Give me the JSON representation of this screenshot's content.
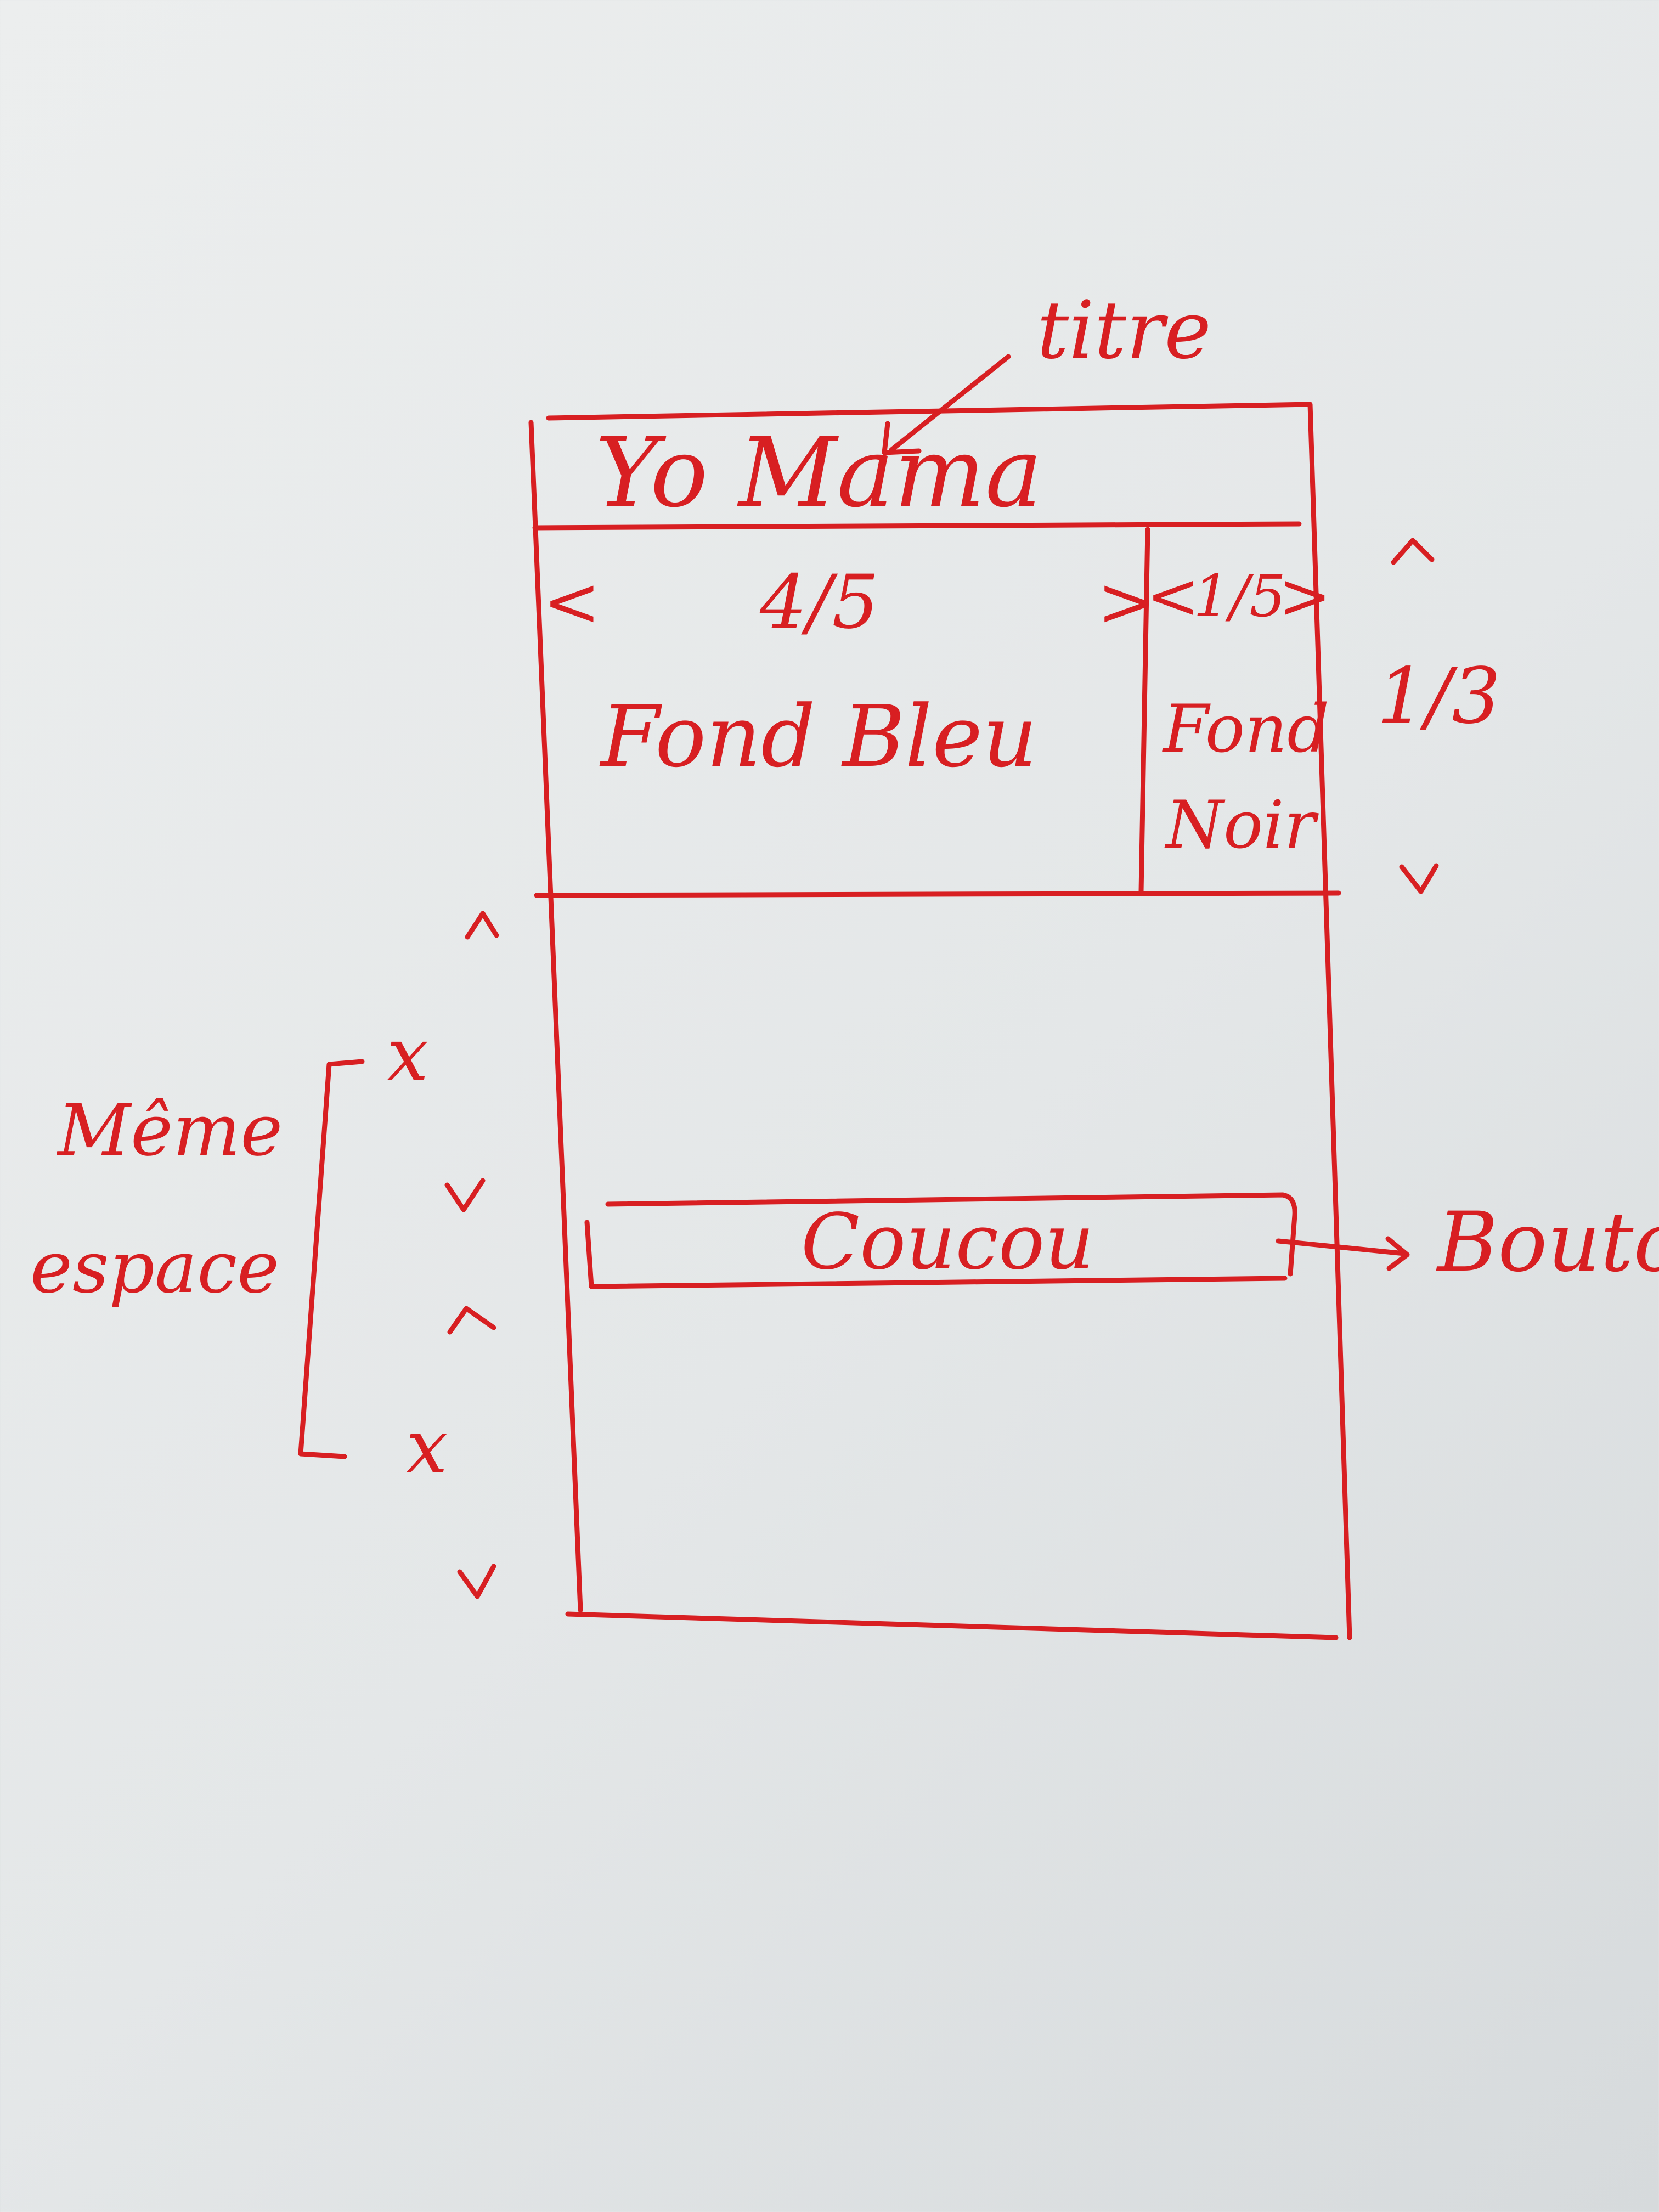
{
  "ink_color": "#d81f22",
  "paper_color": "#e8eaeb",
  "mockup": {
    "title": "Yo Mama",
    "carousel_main": {
      "prev_glyph": "<",
      "next_glyph": ">",
      "counter": "4/5",
      "label": "Fond Bleu"
    },
    "carousel_side": {
      "prev_glyph": "<",
      "next_glyph": ">",
      "counter": "1/5",
      "label_line1": "Fond",
      "label_line2": "Noir"
    },
    "button_label": "Coucou"
  },
  "annotations": {
    "title_note": "titre",
    "button_note": "Bouton",
    "height_ratio": "1/3",
    "same_space_line1": "Même",
    "same_space_line2": "espace",
    "spacing_var_top": "x",
    "spacing_var_bottom": "x"
  }
}
